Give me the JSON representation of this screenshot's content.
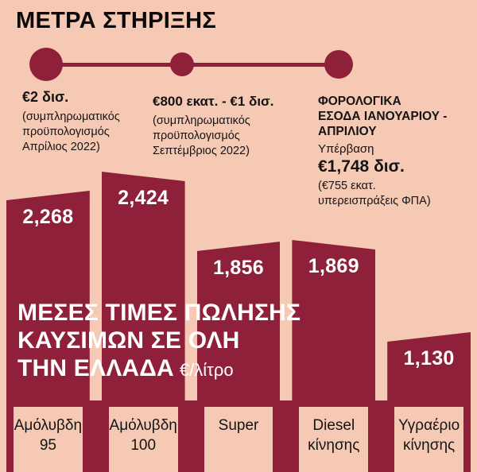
{
  "page": {
    "background_color": "#f6c9b4",
    "accent_color": "#8e2139",
    "title": "ΜΕΤΡΑ ΣΤΗΡΙΞΗΣ"
  },
  "timeline": {
    "items": [
      {
        "amount": "€2 δισ.",
        "note_lines": [
          "(συμπληρωματικός",
          "προϋπολογισμός",
          "Απρίλιος 2022)"
        ]
      },
      {
        "amount": "€800 εκατ. - €1 δισ.",
        "note_lines": [
          "(συμπληρωματικός",
          "προϋπολογισμός",
          "Σεπτέμβριος 2022)"
        ]
      },
      {
        "heading_lines": [
          "ΦΟΡΟΛΟΓΙΚΑ",
          "ΕΣΟΔΑ ΙΑΝΟΥΑΡΙΟΥ -",
          "ΑΠΡΙΛΙΟΥ"
        ],
        "sub": "Υπέρβαση",
        "amount": "€1,748 δισ.",
        "note_lines": [
          "(€755 εκατ.",
          "υπερεισπράξεις ΦΠΑ)"
        ]
      }
    ]
  },
  "chart_data": {
    "type": "bar",
    "title": "ΜΕΣΕΣ ΤΙΜΕΣ ΠΩΛΗΣΗΣ ΚΑΥΣΙΜΩΝ ΣΕ ΟΛΗ ΤΗΝ ΕΛΛΑΔΑ",
    "title_lines": [
      "ΜΕΣΕΣ ΤΙΜΕΣ ΠΩΛΗΣΗΣ",
      "ΚΑΥΣΙΜΩΝ ΣΕ ΟΛΗ",
      "ΤΗΝ ΕΛΛΑΔΑ"
    ],
    "unit": "€/λίτρο",
    "categories": [
      "Αμόλυβδη 95",
      "Αμόλυβδη 100",
      "Super",
      "Diesel κίνησης",
      "Υγραέριο κίνησης"
    ],
    "category_lines": [
      [
        "Αμόλυβδη",
        "95"
      ],
      [
        "Αμόλυβδη",
        "100"
      ],
      [
        "Super"
      ],
      [
        "Diesel",
        "κίνησης"
      ],
      [
        "Υγραέριο",
        "κίνησης"
      ]
    ],
    "values": [
      2.268,
      2.424,
      1.856,
      1.869,
      1.13
    ],
    "value_labels": [
      "2,268",
      "2,424",
      "1,856",
      "1,869",
      "1,130"
    ],
    "ylim": [
      0,
      2.5
    ],
    "grid": false,
    "legend": "none",
    "bar_color": "#8e2139",
    "value_label_color": "#ffffff"
  }
}
